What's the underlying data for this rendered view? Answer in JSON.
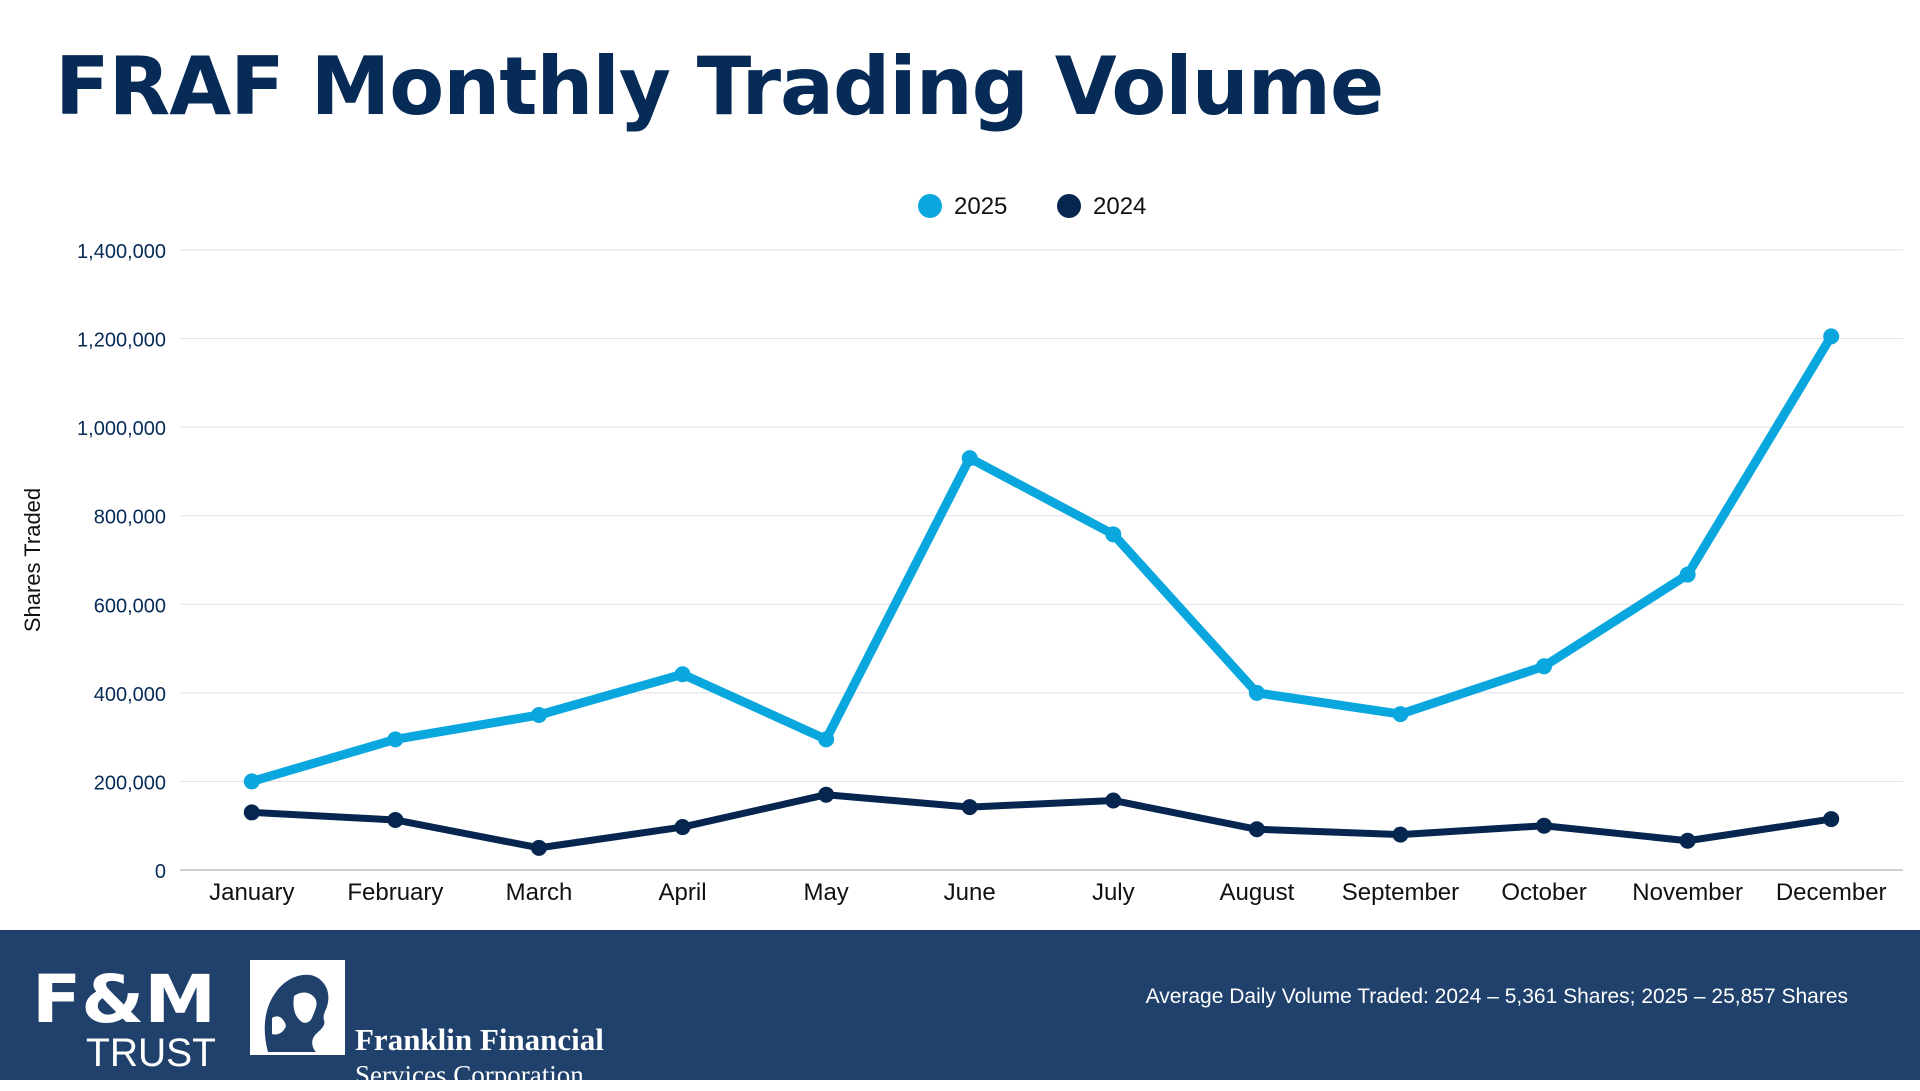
{
  "page": {
    "title": "FRAF Monthly Trading Volume",
    "footer_note": "Average Daily Volume Traded:  2024 – 5,361 Shares; 2025 – 25,857 Shares",
    "logos": {
      "fm_trust": [
        "F&M",
        "TRUST"
      ],
      "franklin_financial": [
        "Franklin Financial",
        "Services Corporation"
      ]
    },
    "colors": {
      "title": "#062B57",
      "footer_bg": "#1F416B",
      "series_2025": "#0AA7DF",
      "series_2024": "#062650"
    }
  },
  "chart_data": {
    "type": "line",
    "title": "FRAF Monthly Trading Volume",
    "categories": [
      "January",
      "February",
      "March",
      "April",
      "May",
      "June",
      "July",
      "August",
      "September",
      "October",
      "November",
      "December"
    ],
    "series": [
      {
        "name": "2025",
        "color": "#0AA7DF",
        "values": [
          200000,
          295000,
          350000,
          442000,
          295000,
          930000,
          758000,
          400000,
          352000,
          460000,
          667000,
          1205000
        ]
      },
      {
        "name": "2024",
        "color": "#062650",
        "values": [
          130000,
          113000,
          50000,
          97000,
          170000,
          142000,
          157000,
          92000,
          80000,
          100000,
          66000,
          115000
        ]
      }
    ],
    "ylabel": "Shares Traded",
    "xlabel": "",
    "ylim": [
      0,
      1400000
    ],
    "yticks": [
      0,
      200000,
      400000,
      600000,
      800000,
      1000000,
      1200000,
      1400000
    ],
    "ytick_labels": [
      "0",
      "200,000",
      "400,000",
      "600,000",
      "800,000",
      "1,000,000",
      "1,200,000",
      "1,400,000"
    ],
    "legend": "top-center",
    "grid": true
  }
}
